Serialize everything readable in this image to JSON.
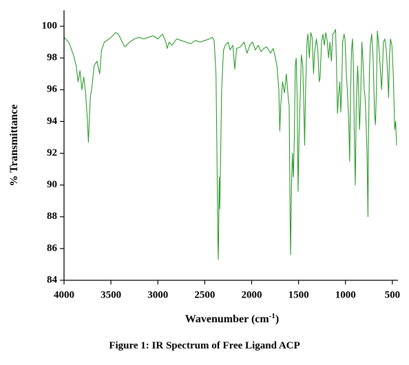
{
  "chart_data": {
    "type": "line",
    "caption": "Figure 1: IR Spectrum of Free Ligand ACP",
    "x_label": {
      "text": "Wavenumber (cm",
      "sup": "-1",
      "tail": ")"
    },
    "y_label": "% Transmittance",
    "color": "#2a9a2a",
    "xlim": [
      4000,
      440
    ],
    "ylim": [
      84,
      101
    ],
    "xticks": [
      4000,
      3500,
      3000,
      2500,
      2000,
      1500,
      1000,
      500
    ],
    "yticks": [
      84,
      86,
      88,
      90,
      92,
      94,
      96,
      98,
      100
    ],
    "x": [
      4000,
      3950,
      3900,
      3870,
      3850,
      3830,
      3810,
      3790,
      3770,
      3750,
      3740,
      3720,
      3700,
      3680,
      3650,
      3620,
      3600,
      3570,
      3520,
      3480,
      3450,
      3420,
      3380,
      3350,
      3300,
      3250,
      3200,
      3150,
      3100,
      3050,
      3000,
      2950,
      2920,
      2900,
      2880,
      2850,
      2800,
      2750,
      2700,
      2650,
      2600,
      2550,
      2500,
      2450,
      2420,
      2400,
      2380,
      2370,
      2360,
      2355,
      2350,
      2345,
      2340,
      2330,
      2320,
      2300,
      2280,
      2250,
      2230,
      2200,
      2180,
      2160,
      2120,
      2080,
      2050,
      2020,
      1990,
      1960,
      1930,
      1900,
      1870,
      1840,
      1800,
      1770,
      1750,
      1730,
      1710,
      1700,
      1690,
      1670,
      1650,
      1630,
      1610,
      1600,
      1590,
      1585,
      1575,
      1565,
      1555,
      1545,
      1535,
      1525,
      1515,
      1505,
      1495,
      1485,
      1470,
      1455,
      1440,
      1435,
      1425,
      1410,
      1400,
      1385,
      1370,
      1355,
      1340,
      1330,
      1310,
      1295,
      1280,
      1270,
      1255,
      1240,
      1225,
      1210,
      1195,
      1180,
      1165,
      1150,
      1135,
      1120,
      1105,
      1095,
      1085,
      1075,
      1060,
      1050,
      1040,
      1030,
      1015,
      1005,
      990,
      980,
      965,
      955,
      945,
      935,
      925,
      915,
      905,
      895,
      885,
      870,
      860,
      850,
      840,
      825,
      815,
      800,
      790,
      775,
      770,
      760,
      755,
      745,
      735,
      720,
      705,
      690,
      680,
      670,
      660,
      645,
      630,
      615,
      605,
      595,
      580,
      565,
      550,
      540,
      530,
      520,
      505,
      490,
      475,
      465,
      455
    ],
    "values": [
      99.3,
      99,
      98.2,
      97.5,
      96.5,
      97.2,
      96,
      96.8,
      95.8,
      94,
      92.7,
      95.5,
      96.3,
      97.5,
      97.8,
      97,
      98.5,
      99,
      99.2,
      99.4,
      99.6,
      99.5,
      99,
      98.7,
      99,
      99.2,
      99.3,
      99.2,
      99.3,
      99.4,
      99.2,
      99.5,
      99.1,
      98.6,
      99,
      98.8,
      99.2,
      99.1,
      99,
      98.9,
      99.1,
      99,
      99.1,
      99.2,
      99.3,
      99.1,
      97,
      92,
      86.5,
      85.3,
      88,
      90.5,
      88.5,
      92,
      96,
      98.5,
      98.8,
      99,
      98.5,
      98.8,
      97.3,
      98.6,
      98.7,
      99,
      98.3,
      98.8,
      99,
      98.5,
      98.8,
      98.4,
      98.6,
      98.7,
      98.3,
      98.6,
      98.1,
      97.5,
      96,
      93.4,
      95,
      96.5,
      95.8,
      97,
      95.5,
      95,
      88,
      85.6,
      90,
      92,
      90.5,
      93,
      97.5,
      98,
      95.5,
      89.6,
      93,
      95,
      98.2,
      97.5,
      94,
      92.5,
      96,
      99,
      99.5,
      98,
      99.6,
      99.3,
      97,
      98.3,
      99.2,
      98.5,
      96.5,
      96.8,
      99,
      99.5,
      98.8,
      99.6,
      99.1,
      98,
      99,
      97.8,
      99.5,
      99.6,
      99.8,
      97.5,
      94.5,
      95.5,
      96.5,
      94.6,
      96,
      99,
      99.5,
      99.2,
      97,
      96,
      94,
      91.5,
      96,
      98.5,
      99.2,
      97.5,
      93,
      90,
      95,
      97.5,
      96,
      93.5,
      95,
      99,
      98,
      96,
      95.5,
      93,
      92,
      88,
      92.5,
      97,
      98.8,
      99.5,
      98,
      94.5,
      93.8,
      96,
      99.7,
      98.8,
      97.5,
      96,
      97.3,
      99,
      99.2,
      98.5,
      97,
      95.5,
      98.2,
      99.2,
      98.8,
      97,
      93.5,
      94,
      92.5
    ]
  }
}
